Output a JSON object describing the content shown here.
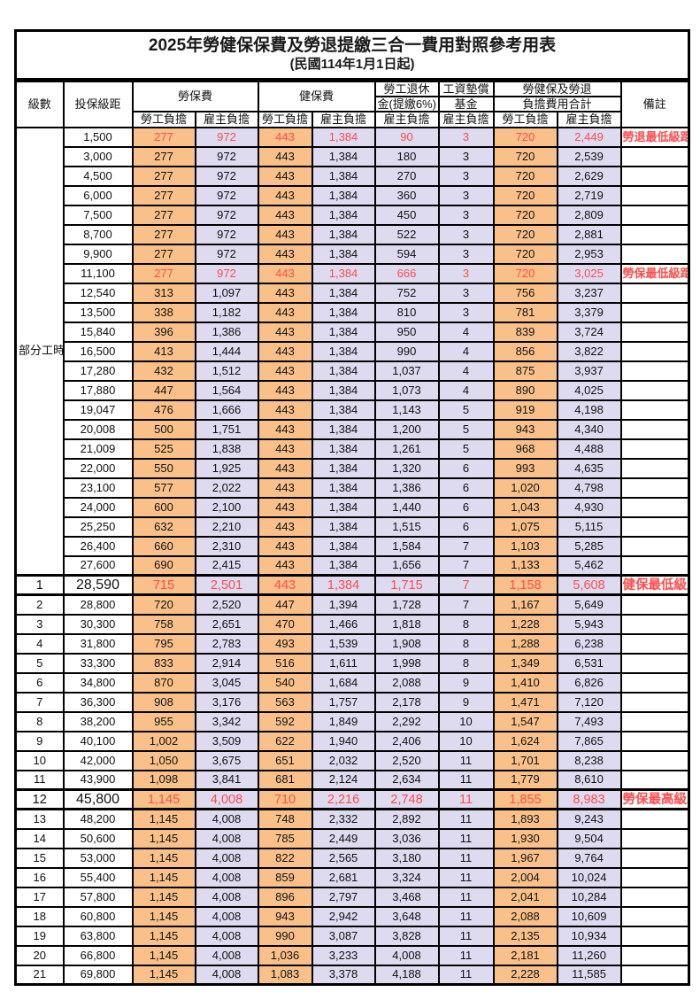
{
  "title": "2025年勞健保保費及勞退提繳三合一費用對照參考用表",
  "subtitle": "(民國114年1月1日起)",
  "header": {
    "level": "級數",
    "bracket": "投保級距",
    "labor_group": "勞保費",
    "health_group": "健保費",
    "pension_line1": "勞工退休",
    "pension_line2": "金(提繳6%)",
    "wage_fund_line1": "工資墊償",
    "wage_fund_line2": "基金",
    "total_line1": "勞健保及勞退",
    "total_line2": "負擔費用合計",
    "remark": "備註",
    "employee_label": "勞工負擔",
    "employer_label": "雇主負擔"
  },
  "colors": {
    "employee_bg": "#F9C189",
    "employer_bg": "#DEDBF1",
    "highlight_text": "#FF4C4C",
    "border": "#000000"
  },
  "part_time_label": "部分工時",
  "part_time_rowspan": 23,
  "rows": [
    {
      "level": "",
      "bracket": "1,500",
      "cells": [
        "277",
        "972",
        "443",
        "1,384",
        "90",
        "3",
        "720",
        "2,449"
      ],
      "remark": "勞退最低級距",
      "red": true,
      "big": false
    },
    {
      "level": "",
      "bracket": "3,000",
      "cells": [
        "277",
        "972",
        "443",
        "1,384",
        "180",
        "3",
        "720",
        "2,539"
      ],
      "remark": "",
      "red": false,
      "big": false
    },
    {
      "level": "",
      "bracket": "4,500",
      "cells": [
        "277",
        "972",
        "443",
        "1,384",
        "270",
        "3",
        "720",
        "2,629"
      ],
      "remark": "",
      "red": false,
      "big": false
    },
    {
      "level": "",
      "bracket": "6,000",
      "cells": [
        "277",
        "972",
        "443",
        "1,384",
        "360",
        "3",
        "720",
        "2,719"
      ],
      "remark": "",
      "red": false,
      "big": false
    },
    {
      "level": "",
      "bracket": "7,500",
      "cells": [
        "277",
        "972",
        "443",
        "1,384",
        "450",
        "3",
        "720",
        "2,809"
      ],
      "remark": "",
      "red": false,
      "big": false
    },
    {
      "level": "",
      "bracket": "8,700",
      "cells": [
        "277",
        "972",
        "443",
        "1,384",
        "522",
        "3",
        "720",
        "2,881"
      ],
      "remark": "",
      "red": false,
      "big": false
    },
    {
      "level": "",
      "bracket": "9,900",
      "cells": [
        "277",
        "972",
        "443",
        "1,384",
        "594",
        "3",
        "720",
        "2,953"
      ],
      "remark": "",
      "red": false,
      "big": false
    },
    {
      "level": "",
      "bracket": "11,100",
      "cells": [
        "277",
        "972",
        "443",
        "1,384",
        "666",
        "3",
        "720",
        "3,025"
      ],
      "remark": "勞保最低級距",
      "red": true,
      "big": false
    },
    {
      "level": "",
      "bracket": "12,540",
      "cells": [
        "313",
        "1,097",
        "443",
        "1,384",
        "752",
        "3",
        "756",
        "3,237"
      ],
      "remark": "",
      "red": false,
      "big": false
    },
    {
      "level": "",
      "bracket": "13,500",
      "cells": [
        "338",
        "1,182",
        "443",
        "1,384",
        "810",
        "3",
        "781",
        "3,379"
      ],
      "remark": "",
      "red": false,
      "big": false
    },
    {
      "level": "",
      "bracket": "15,840",
      "cells": [
        "396",
        "1,386",
        "443",
        "1,384",
        "950",
        "4",
        "839",
        "3,724"
      ],
      "remark": "",
      "red": false,
      "big": false
    },
    {
      "level": "",
      "bracket": "16,500",
      "cells": [
        "413",
        "1,444",
        "443",
        "1,384",
        "990",
        "4",
        "856",
        "3,822"
      ],
      "remark": "",
      "red": false,
      "big": false
    },
    {
      "level": "",
      "bracket": "17,280",
      "cells": [
        "432",
        "1,512",
        "443",
        "1,384",
        "1,037",
        "4",
        "875",
        "3,937"
      ],
      "remark": "",
      "red": false,
      "big": false
    },
    {
      "level": "",
      "bracket": "17,880",
      "cells": [
        "447",
        "1,564",
        "443",
        "1,384",
        "1,073",
        "4",
        "890",
        "4,025"
      ],
      "remark": "",
      "red": false,
      "big": false
    },
    {
      "level": "",
      "bracket": "19,047",
      "cells": [
        "476",
        "1,666",
        "443",
        "1,384",
        "1,143",
        "5",
        "919",
        "4,198"
      ],
      "remark": "",
      "red": false,
      "big": false
    },
    {
      "level": "",
      "bracket": "20,008",
      "cells": [
        "500",
        "1,751",
        "443",
        "1,384",
        "1,200",
        "5",
        "943",
        "4,340"
      ],
      "remark": "",
      "red": false,
      "big": false
    },
    {
      "level": "",
      "bracket": "21,009",
      "cells": [
        "525",
        "1,838",
        "443",
        "1,384",
        "1,261",
        "5",
        "968",
        "4,488"
      ],
      "remark": "",
      "red": false,
      "big": false
    },
    {
      "level": "",
      "bracket": "22,000",
      "cells": [
        "550",
        "1,925",
        "443",
        "1,384",
        "1,320",
        "6",
        "993",
        "4,635"
      ],
      "remark": "",
      "red": false,
      "big": false
    },
    {
      "level": "",
      "bracket": "23,100",
      "cells": [
        "577",
        "2,022",
        "443",
        "1,384",
        "1,386",
        "6",
        "1,020",
        "4,798"
      ],
      "remark": "",
      "red": false,
      "big": false
    },
    {
      "level": "",
      "bracket": "24,000",
      "cells": [
        "600",
        "2,100",
        "443",
        "1,384",
        "1,440",
        "6",
        "1,043",
        "4,930"
      ],
      "remark": "",
      "red": false,
      "big": false
    },
    {
      "level": "",
      "bracket": "25,250",
      "cells": [
        "632",
        "2,210",
        "443",
        "1,384",
        "1,515",
        "6",
        "1,075",
        "5,115"
      ],
      "remark": "",
      "red": false,
      "big": false
    },
    {
      "level": "",
      "bracket": "26,400",
      "cells": [
        "660",
        "2,310",
        "443",
        "1,384",
        "1,584",
        "7",
        "1,103",
        "5,285"
      ],
      "remark": "",
      "red": false,
      "big": false
    },
    {
      "level": "",
      "bracket": "27,600",
      "cells": [
        "690",
        "2,415",
        "443",
        "1,384",
        "1,656",
        "7",
        "1,133",
        "5,462"
      ],
      "remark": "",
      "red": false,
      "big": false
    },
    {
      "level": "1",
      "bracket": "28,590",
      "cells": [
        "715",
        "2,501",
        "443",
        "1,384",
        "1,715",
        "7",
        "1,158",
        "5,608"
      ],
      "remark": "健保最低級距",
      "red": true,
      "big": true
    },
    {
      "level": "2",
      "bracket": "28,800",
      "cells": [
        "720",
        "2,520",
        "447",
        "1,394",
        "1,728",
        "7",
        "1,167",
        "5,649"
      ],
      "remark": "",
      "red": false,
      "big": false
    },
    {
      "level": "3",
      "bracket": "30,300",
      "cells": [
        "758",
        "2,651",
        "470",
        "1,466",
        "1,818",
        "8",
        "1,228",
        "5,943"
      ],
      "remark": "",
      "red": false,
      "big": false
    },
    {
      "level": "4",
      "bracket": "31,800",
      "cells": [
        "795",
        "2,783",
        "493",
        "1,539",
        "1,908",
        "8",
        "1,288",
        "6,238"
      ],
      "remark": "",
      "red": false,
      "big": false
    },
    {
      "level": "5",
      "bracket": "33,300",
      "cells": [
        "833",
        "2,914",
        "516",
        "1,611",
        "1,998",
        "8",
        "1,349",
        "6,531"
      ],
      "remark": "",
      "red": false,
      "big": false
    },
    {
      "level": "6",
      "bracket": "34,800",
      "cells": [
        "870",
        "3,045",
        "540",
        "1,684",
        "2,088",
        "9",
        "1,410",
        "6,826"
      ],
      "remark": "",
      "red": false,
      "big": false
    },
    {
      "level": "7",
      "bracket": "36,300",
      "cells": [
        "908",
        "3,176",
        "563",
        "1,757",
        "2,178",
        "9",
        "1,471",
        "7,120"
      ],
      "remark": "",
      "red": false,
      "big": false
    },
    {
      "level": "8",
      "bracket": "38,200",
      "cells": [
        "955",
        "3,342",
        "592",
        "1,849",
        "2,292",
        "10",
        "1,547",
        "7,493"
      ],
      "remark": "",
      "red": false,
      "big": false
    },
    {
      "level": "9",
      "bracket": "40,100",
      "cells": [
        "1,002",
        "3,509",
        "622",
        "1,940",
        "2,406",
        "10",
        "1,624",
        "7,865"
      ],
      "remark": "",
      "red": false,
      "big": false
    },
    {
      "level": "10",
      "bracket": "42,000",
      "cells": [
        "1,050",
        "3,675",
        "651",
        "2,032",
        "2,520",
        "11",
        "1,701",
        "8,238"
      ],
      "remark": "",
      "red": false,
      "big": false
    },
    {
      "level": "11",
      "bracket": "43,900",
      "cells": [
        "1,098",
        "3,841",
        "681",
        "2,124",
        "2,634",
        "11",
        "1,779",
        "8,610"
      ],
      "remark": "",
      "red": false,
      "big": false
    },
    {
      "level": "12",
      "bracket": "45,800",
      "cells": [
        "1,145",
        "4,008",
        "710",
        "2,216",
        "2,748",
        "11",
        "1,855",
        "8,983"
      ],
      "remark": "勞保最高級距",
      "red": true,
      "big": true
    },
    {
      "level": "13",
      "bracket": "48,200",
      "cells": [
        "1,145",
        "4,008",
        "748",
        "2,332",
        "2,892",
        "11",
        "1,893",
        "9,243"
      ],
      "remark": "",
      "red": false,
      "big": false
    },
    {
      "level": "14",
      "bracket": "50,600",
      "cells": [
        "1,145",
        "4,008",
        "785",
        "2,449",
        "3,036",
        "11",
        "1,930",
        "9,504"
      ],
      "remark": "",
      "red": false,
      "big": false
    },
    {
      "level": "15",
      "bracket": "53,000",
      "cells": [
        "1,145",
        "4,008",
        "822",
        "2,565",
        "3,180",
        "11",
        "1,967",
        "9,764"
      ],
      "remark": "",
      "red": false,
      "big": false
    },
    {
      "level": "16",
      "bracket": "55,400",
      "cells": [
        "1,145",
        "4,008",
        "859",
        "2,681",
        "3,324",
        "11",
        "2,004",
        "10,024"
      ],
      "remark": "",
      "red": false,
      "big": false
    },
    {
      "level": "17",
      "bracket": "57,800",
      "cells": [
        "1,145",
        "4,008",
        "896",
        "2,797",
        "3,468",
        "11",
        "2,041",
        "10,284"
      ],
      "remark": "",
      "red": false,
      "big": false
    },
    {
      "level": "18",
      "bracket": "60,800",
      "cells": [
        "1,145",
        "4,008",
        "943",
        "2,942",
        "3,648",
        "11",
        "2,088",
        "10,609"
      ],
      "remark": "",
      "red": false,
      "big": false
    },
    {
      "level": "19",
      "bracket": "63,800",
      "cells": [
        "1,145",
        "4,008",
        "990",
        "3,087",
        "3,828",
        "11",
        "2,135",
        "10,934"
      ],
      "remark": "",
      "red": false,
      "big": false
    },
    {
      "level": "20",
      "bracket": "66,800",
      "cells": [
        "1,145",
        "4,008",
        "1,036",
        "3,233",
        "4,008",
        "11",
        "2,181",
        "11,260"
      ],
      "remark": "",
      "red": false,
      "big": false
    },
    {
      "level": "21",
      "bracket": "69,800",
      "cells": [
        "1,145",
        "4,008",
        "1,083",
        "3,378",
        "4,188",
        "11",
        "2,228",
        "11,585"
      ],
      "remark": "",
      "red": false,
      "big": false
    }
  ]
}
